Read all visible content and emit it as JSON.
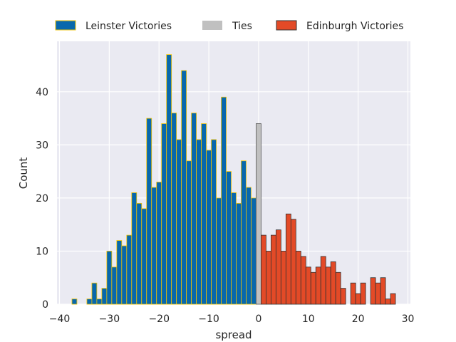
{
  "chart_data": {
    "type": "bar",
    "subtype": "histogram",
    "xlabel": "spread",
    "ylabel": "Count",
    "xlim": [
      -40.5,
      30.5
    ],
    "ylim": [
      0,
      49.5
    ],
    "xticks": [
      -40,
      -30,
      -20,
      -10,
      0,
      10,
      20,
      30
    ],
    "yticks": [
      0,
      10,
      20,
      30,
      40
    ],
    "grid": true,
    "legend_position": "top, outside plot",
    "bin_width": 1,
    "series": [
      {
        "name": "Leinster Victories",
        "color": "#0868ac",
        "edge_color": "#f2c200",
        "x": [
          -38,
          -37,
          -36,
          -35,
          -34,
          -33,
          -32,
          -31,
          -30,
          -29,
          -28,
          -27,
          -26,
          -25,
          -24,
          -23,
          -22,
          -21,
          -20,
          -19,
          -18,
          -17,
          -16,
          -15,
          -14,
          -13,
          -12,
          -11,
          -10,
          -9,
          -8,
          -7,
          -6,
          -5,
          -4,
          -3,
          -2,
          -1
        ],
        "values": [
          0,
          1,
          0,
          0,
          1,
          4,
          1,
          3,
          10,
          7,
          12,
          11,
          13,
          21,
          19,
          18,
          35,
          22,
          23,
          34,
          47,
          36,
          31,
          44,
          27,
          36,
          31,
          34,
          29,
          31,
          20,
          39,
          25,
          21,
          19,
          27,
          22,
          20
        ]
      },
      {
        "name": "Ties",
        "color": "#c0c0c0",
        "edge_color": "#555555",
        "x": [
          0
        ],
        "values": [
          34
        ]
      },
      {
        "name": "Edinburgh Victories",
        "color": "#e34a27",
        "edge_color": "#333333",
        "x": [
          1,
          2,
          3,
          4,
          5,
          6,
          7,
          8,
          9,
          10,
          11,
          12,
          13,
          14,
          15,
          16,
          17,
          18,
          19,
          20,
          21,
          22,
          23,
          24,
          25,
          26,
          27
        ],
        "values": [
          13,
          10,
          13,
          14,
          10,
          17,
          16,
          10,
          9,
          7,
          6,
          7,
          9,
          7,
          8,
          6,
          3,
          0,
          4,
          2,
          4,
          0,
          5,
          4,
          5,
          1,
          2
        ]
      }
    ]
  }
}
